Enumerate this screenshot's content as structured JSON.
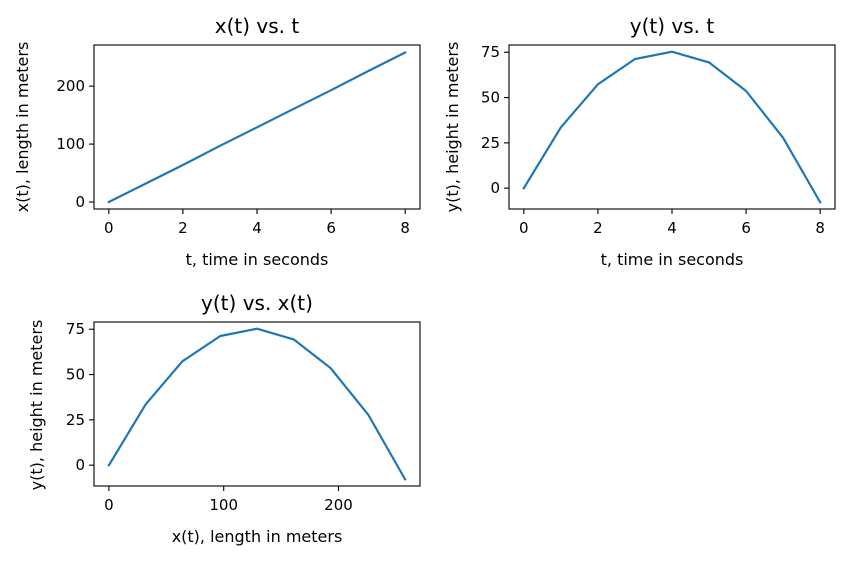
{
  "colors": {
    "line": "#1f77b4",
    "axes": "#000000",
    "background": "#ffffff"
  },
  "chart_data": [
    {
      "type": "line",
      "title": "x(t) vs. t",
      "xlabel": "t, time in seconds",
      "ylabel": "x(t), length in meters",
      "grid": false,
      "xlim": [
        -0.4,
        8.4
      ],
      "ylim": [
        -12,
        271
      ],
      "xticks": [
        0,
        2,
        4,
        6,
        8
      ],
      "xtick_labels": [
        "0",
        "2",
        "4",
        "6",
        "8"
      ],
      "yticks": [
        0,
        100,
        200
      ],
      "ytick_labels": [
        "0",
        "100",
        "200"
      ],
      "series": [
        {
          "x": [
            0,
            1,
            2,
            3,
            4,
            5,
            6,
            7,
            8
          ],
          "y": [
            0,
            32,
            64,
            97,
            129,
            161,
            193,
            226,
            258
          ]
        }
      ]
    },
    {
      "type": "line",
      "title": "y(t) vs. t",
      "xlabel": "t, time in seconds",
      "ylabel": "y(t), height in meters",
      "grid": false,
      "xlim": [
        -0.4,
        8.4
      ],
      "ylim": [
        -11.5,
        79
      ],
      "xticks": [
        0,
        2,
        4,
        6,
        8
      ],
      "xtick_labels": [
        "0",
        "2",
        "4",
        "6",
        "8"
      ],
      "yticks": [
        0,
        25,
        50,
        75
      ],
      "ytick_labels": [
        "0",
        "25",
        "50",
        "75"
      ],
      "series": [
        {
          "x": [
            0,
            1,
            2,
            3,
            4,
            5,
            6,
            7,
            8
          ],
          "y": [
            0,
            33.6,
            57.3,
            71.3,
            75.3,
            69.4,
            53.6,
            27.8,
            -7.8
          ]
        }
      ]
    },
    {
      "type": "line",
      "title": "y(t) vs. x(t)",
      "xlabel": "x(t),  length in meters",
      "ylabel": "y(t), height in meters",
      "grid": false,
      "xlim": [
        -13,
        271
      ],
      "ylim": [
        -11.5,
        79
      ],
      "xticks": [
        0,
        100,
        200
      ],
      "xtick_labels": [
        "0",
        "100",
        "200"
      ],
      "yticks": [
        0,
        25,
        50,
        75
      ],
      "ytick_labels": [
        "0",
        "25",
        "50",
        "75"
      ],
      "series": [
        {
          "x": [
            0,
            32,
            64,
            97,
            129,
            161,
            193,
            226,
            258
          ],
          "y": [
            0,
            33.6,
            57.3,
            71.3,
            75.3,
            69.4,
            53.6,
            27.8,
            -7.8
          ]
        }
      ]
    }
  ]
}
